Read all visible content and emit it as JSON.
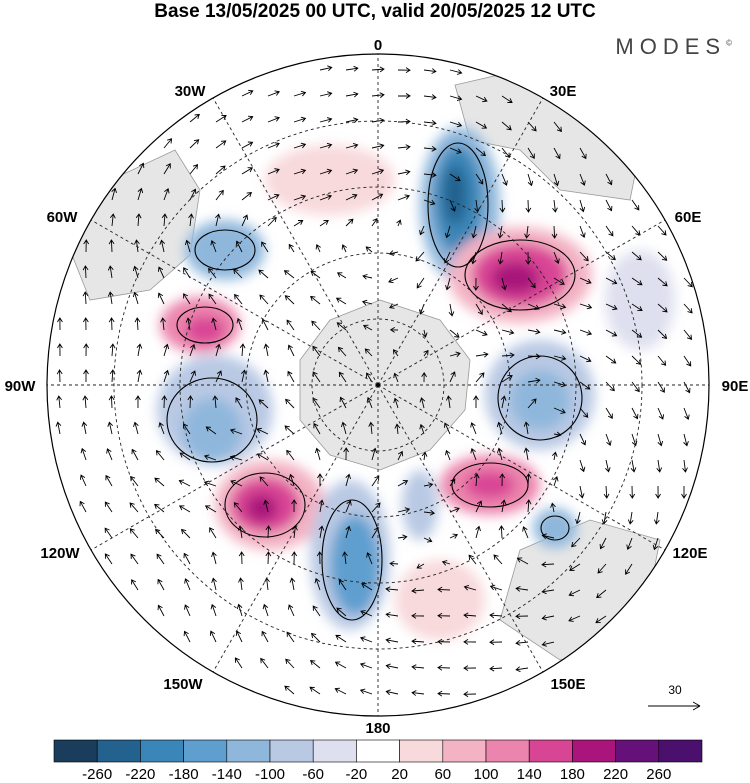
{
  "title": "Base 13/05/2025 00 UTC, valid 20/05/2025 12 UTC",
  "brand": "MODES",
  "brand_mark": "©",
  "projection": "south-polar-stereographic",
  "longitude_labels": {
    "top": "0",
    "top_right": "30E",
    "right_upper": "60E",
    "right": "90E",
    "right_lower": "120E",
    "bottom_right": "150E",
    "bottom": "180",
    "bottom_left": "150W",
    "left_lower": "120W",
    "left": "90W",
    "left_upper": "60W",
    "top_left": "30W"
  },
  "reference_vector_label": "30",
  "colorbar": {
    "ticks": [
      "-260",
      "-220",
      "-180",
      "-140",
      "-100",
      "-60",
      "-20",
      "20",
      "60",
      "100",
      "140",
      "180",
      "220",
      "260"
    ],
    "colors": [
      "#1b3d5c",
      "#23628f",
      "#3a86b8",
      "#5e9fcf",
      "#8fb7dc",
      "#b9c9e4",
      "#dfe0ef",
      "#ffffff",
      "#f8d9dc",
      "#f3b3c4",
      "#ec85ad",
      "#d94595",
      "#a9157a",
      "#66107a",
      "#4b0f6e"
    ]
  }
}
